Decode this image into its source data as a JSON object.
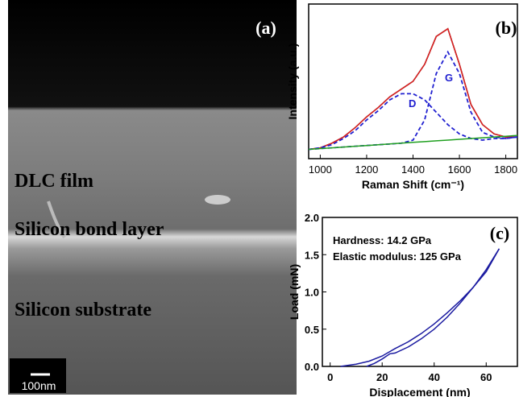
{
  "figure": {
    "panel_a": {
      "label": "(a)",
      "layers": [
        "DLC film",
        "Silicon bond layer",
        "Silicon substrate"
      ],
      "scale_bar": "100nm"
    }
  },
  "chart_data": [
    {
      "type": "line",
      "label": "(b)",
      "x_label": "Raman Shift (cm⁻¹)",
      "y_label": "Intensity (a.u.)",
      "annotations": [
        "D",
        "G"
      ],
      "x": [
        950,
        1000,
        1050,
        1100,
        1150,
        1200,
        1250,
        1300,
        1350,
        1400,
        1450,
        1500,
        1550,
        1600,
        1650,
        1700,
        1750,
        1800,
        1850
      ],
      "xlim": [
        950,
        1850
      ],
      "xticks": [
        1000,
        1200,
        1400,
        1600,
        1800
      ],
      "ylim": [
        0,
        1
      ],
      "series": [
        {
          "color": "#000000",
          "style": "solid",
          "values": [
            0.06,
            0.07,
            0.1,
            0.14,
            0.2,
            0.27,
            0.33,
            0.4,
            0.45,
            0.5,
            0.61,
            0.79,
            0.84,
            0.61,
            0.35,
            0.22,
            0.16,
            0.14,
            0.14
          ]
        },
        {
          "color": "#e02020",
          "style": "solid",
          "values": [
            0.06,
            0.07,
            0.1,
            0.14,
            0.2,
            0.27,
            0.33,
            0.4,
            0.45,
            0.5,
            0.61,
            0.79,
            0.84,
            0.61,
            0.35,
            0.22,
            0.16,
            0.14,
            0.14
          ]
        },
        {
          "color": "#2020d0",
          "style": "dashed",
          "values": [
            0.06,
            0.07,
            0.09,
            0.13,
            0.18,
            0.25,
            0.31,
            0.38,
            0.42,
            0.42,
            0.38,
            0.3,
            0.22,
            0.16,
            0.13,
            0.12,
            0.13,
            0.13,
            0.14
          ]
        },
        {
          "color": "#2020d0",
          "style": "dashed",
          "values": [
            0.06,
            0.065,
            0.07,
            0.075,
            0.08,
            0.085,
            0.09,
            0.095,
            0.1,
            0.12,
            0.25,
            0.55,
            0.69,
            0.55,
            0.3,
            0.17,
            0.14,
            0.13,
            0.14
          ]
        },
        {
          "color": "#20a020",
          "style": "solid",
          "values": [
            0.06,
            0.065,
            0.07,
            0.075,
            0.08,
            0.085,
            0.09,
            0.095,
            0.1,
            0.105,
            0.11,
            0.115,
            0.12,
            0.125,
            0.13,
            0.135,
            0.14,
            0.145,
            0.15
          ]
        }
      ]
    },
    {
      "type": "line",
      "label": "(c)",
      "x_label": "Displacement (nm)",
      "y_label": "Load (mN)",
      "annotations": [
        "Hardness: 14.2 GPa",
        "Elastic modulus: 125 GPa"
      ],
      "xlim": [
        -3,
        72
      ],
      "xticks": [
        0,
        20,
        40,
        60
      ],
      "ylim": [
        0,
        2.0
      ],
      "yticks": [
        {
          "value": 0,
          "label": "0.0"
        },
        {
          "value": 0.5,
          "label": "0.5"
        },
        {
          "value": 1.0,
          "label": "1.0"
        },
        {
          "value": 1.5,
          "label": "1.5"
        },
        {
          "value": 2.0,
          "label": "2.0"
        }
      ],
      "series": [
        {
          "color": "#1a1aa0",
          "style": "solid",
          "x": [
            4,
            10,
            15,
            20,
            23,
            25,
            30,
            35,
            40,
            45,
            50,
            55,
            60,
            65
          ],
          "values": [
            0,
            0.03,
            0.07,
            0.14,
            0.2,
            0.24,
            0.33,
            0.44,
            0.57,
            0.72,
            0.88,
            1.06,
            1.27,
            1.58
          ]
        },
        {
          "color": "#1a1aa0",
          "style": "solid",
          "x": [
            65,
            60,
            55,
            50,
            45,
            40,
            35,
            30,
            25,
            23,
            20,
            17,
            14
          ],
          "values": [
            1.58,
            1.3,
            1.06,
            0.85,
            0.66,
            0.5,
            0.37,
            0.26,
            0.18,
            0.17,
            0.1,
            0.04,
            0
          ]
        }
      ]
    }
  ]
}
